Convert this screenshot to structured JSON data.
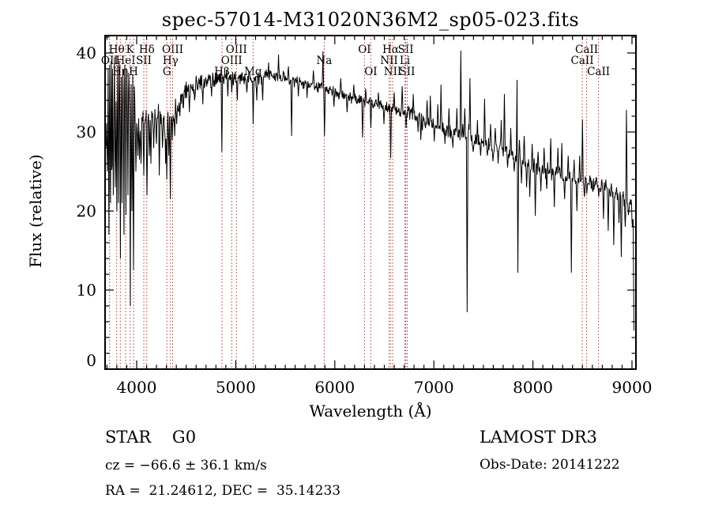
{
  "annotations": {
    "class_label": "STAR    G0",
    "survey": "LAMOST DR3",
    "cz": "cz = −66.6 ± 36.1 km/s",
    "obs_date": "Obs-Date: 20141222",
    "radec": "RA =  21.24612, DEC =  35.14233"
  },
  "colors": {
    "background": "#ffffff",
    "frame": "#000000",
    "spectrum": "#000000",
    "line_marker": "#aa3939",
    "text": "#000000"
  },
  "chart_data": {
    "type": "line",
    "title": "spec-57014-M31020N36M2_sp05-023.fits",
    "xlabel": "Wavelength (Å)",
    "ylabel": "Flux (relative)",
    "series_name": "spectrum",
    "xlim": [
      3681,
      9040
    ],
    "ylim": [
      0,
      42.2
    ],
    "x_ticks": [
      4000,
      5000,
      6000,
      7000,
      8000,
      9000
    ],
    "y_ticks": [
      0,
      10,
      20,
      30,
      40
    ],
    "x_minor_step": 100,
    "y_minor_step": 2,
    "grid": false,
    "sample_step_angstrom": 4,
    "spectral_line_markers": [
      {
        "label": "OII",
        "wavelength": 3727,
        "row": 2
      },
      {
        "label": "Hθ",
        "wavelength": 3798,
        "row": 1
      },
      {
        "label": "Hη",
        "wavelength": 3835,
        "row": 3
      },
      {
        "label": "HeI",
        "wavelength": 3889,
        "row": 2
      },
      {
        "label": "K",
        "wavelength": 3934,
        "row": 1
      },
      {
        "label": "H",
        "wavelength": 3968,
        "row": 3
      },
      {
        "label": "SII",
        "wavelength": 4072,
        "row": 2
      },
      {
        "label": "Hδ",
        "wavelength": 4102,
        "row": 1
      },
      {
        "label": "G",
        "wavelength": 4305,
        "row": 3
      },
      {
        "label": "Hγ",
        "wavelength": 4341,
        "row": 2
      },
      {
        "label": "OIII",
        "wavelength": 4363,
        "row": 1
      },
      {
        "label": "Hβ",
        "wavelength": 4861,
        "row": 3
      },
      {
        "label": "OIII",
        "wavelength": 4959,
        "row": 2
      },
      {
        "label": "OIII",
        "wavelength": 5007,
        "row": 1
      },
      {
        "label": "Mg",
        "wavelength": 5175,
        "row": 3
      },
      {
        "label": "Na",
        "wavelength": 5893,
        "row": 2
      },
      {
        "label": "OI",
        "wavelength": 6300,
        "row": 1
      },
      {
        "label": "OI",
        "wavelength": 6364,
        "row": 3
      },
      {
        "label": "NII",
        "wavelength": 6548,
        "row": 2
      },
      {
        "label": "Hα",
        "wavelength": 6563,
        "row": 1
      },
      {
        "label": "NII",
        "wavelength": 6584,
        "row": 3
      },
      {
        "label": "Li",
        "wavelength": 6708,
        "row": 2
      },
      {
        "label": "SII",
        "wavelength": 6716,
        "row": 1
      },
      {
        "label": "SII",
        "wavelength": 6731,
        "row": 3
      },
      {
        "label": "CaII",
        "wavelength": 8498,
        "row": 2
      },
      {
        "label": "CaII",
        "wavelength": 8542,
        "row": 1
      },
      {
        "label": "CaII",
        "wavelength": 8662,
        "row": 3
      }
    ],
    "envelope_points": [
      [
        3692,
        28
      ],
      [
        3700,
        30
      ],
      [
        3712,
        31
      ],
      [
        3725,
        30.5
      ],
      [
        3745,
        31.5
      ],
      [
        3765,
        32
      ],
      [
        3785,
        32.5
      ],
      [
        3805,
        32
      ],
      [
        3835,
        32.5
      ],
      [
        3865,
        33
      ],
      [
        3900,
        33.5
      ],
      [
        3940,
        34
      ],
      [
        3970,
        33
      ],
      [
        4000,
        31.5
      ],
      [
        4040,
        31.5
      ],
      [
        4080,
        31
      ],
      [
        4120,
        31.5
      ],
      [
        4160,
        32
      ],
      [
        4200,
        32.5
      ],
      [
        4245,
        32.5
      ],
      [
        4285,
        31.5
      ],
      [
        4325,
        31.8
      ],
      [
        4365,
        32.5
      ],
      [
        4405,
        33.5
      ],
      [
        4455,
        34.5
      ],
      [
        4505,
        35.3
      ],
      [
        4555,
        35.8
      ],
      [
        4605,
        36.2
      ],
      [
        4705,
        36.6
      ],
      [
        4805,
        36.8
      ],
      [
        4905,
        37
      ],
      [
        5005,
        36.8
      ],
      [
        5105,
        37
      ],
      [
        5205,
        36.6
      ],
      [
        5305,
        37
      ],
      [
        5405,
        37
      ],
      [
        5505,
        36.8
      ],
      [
        5605,
        36.4
      ],
      [
        5705,
        36.2
      ],
      [
        5805,
        35.8
      ],
      [
        5905,
        35.4
      ],
      [
        6005,
        35
      ],
      [
        6105,
        34.6
      ],
      [
        6205,
        34.2
      ],
      [
        6305,
        33.8
      ],
      [
        6405,
        33.5
      ],
      [
        6505,
        33.2
      ],
      [
        6605,
        32.8
      ],
      [
        6705,
        32.6
      ],
      [
        6805,
        32.2
      ],
      [
        6905,
        31.4
      ],
      [
        7005,
        30.8
      ],
      [
        7105,
        30.4
      ],
      [
        7205,
        29.8
      ],
      [
        7305,
        29.4
      ],
      [
        7405,
        29
      ],
      [
        7505,
        28.6
      ],
      [
        7605,
        28.2
      ],
      [
        7705,
        27.6
      ],
      [
        7805,
        27
      ],
      [
        7905,
        26.2
      ],
      [
        8005,
        25.6
      ],
      [
        8105,
        25.2
      ],
      [
        8205,
        24.8
      ],
      [
        8305,
        24.4
      ],
      [
        8405,
        24
      ],
      [
        8505,
        23.6
      ],
      [
        8605,
        23.3
      ],
      [
        8705,
        23
      ],
      [
        8805,
        22.2
      ],
      [
        8855,
        21.8
      ],
      [
        8905,
        21.4
      ],
      [
        8955,
        21
      ],
      [
        9000,
        20.3
      ],
      [
        9012,
        19
      ],
      [
        9018,
        8
      ],
      [
        9022,
        2.5
      ]
    ],
    "noise_amplitude_regions": [
      [
        3692,
        3995,
        4.8
      ],
      [
        3995,
        4350,
        2.1
      ],
      [
        4350,
        4800,
        1.5
      ],
      [
        4800,
        5500,
        1.1
      ],
      [
        5500,
        6500,
        0.8
      ],
      [
        6500,
        7600,
        1.0
      ],
      [
        7600,
        8300,
        1.3
      ],
      [
        8300,
        9005,
        1.1
      ],
      [
        9005,
        9022,
        0.6
      ]
    ],
    "narrow_features": [
      [
        3706,
        20
      ],
      [
        3712,
        38
      ],
      [
        3720,
        17
      ],
      [
        3728,
        38.5
      ],
      [
        3736,
        21
      ],
      [
        3745,
        39
      ],
      [
        3751,
        13.5
      ],
      [
        3757,
        38
      ],
      [
        3765,
        22
      ],
      [
        3775,
        39.5
      ],
      [
        3782,
        23
      ],
      [
        3798,
        20
      ],
      [
        3806,
        38.5
      ],
      [
        3815,
        21
      ],
      [
        3822,
        39
      ],
      [
        3835,
        14
      ],
      [
        3842,
        37
      ],
      [
        3850,
        21
      ],
      [
        3858,
        38
      ],
      [
        3872,
        17
      ],
      [
        3880,
        38.5
      ],
      [
        3890,
        19.5
      ],
      [
        3900,
        38
      ],
      [
        3912,
        22
      ],
      [
        3920,
        37.5
      ],
      [
        3934,
        8
      ],
      [
        3944,
        36
      ],
      [
        3952,
        20
      ],
      [
        3969,
        12.5
      ],
      [
        3980,
        34.5
      ],
      [
        3990,
        25
      ],
      [
        4010,
        27
      ],
      [
        4026,
        26.5
      ],
      [
        4045,
        26
      ],
      [
        4072,
        24.5
      ],
      [
        4102,
        22
      ],
      [
        4128,
        27
      ],
      [
        4144,
        26
      ],
      [
        4172,
        28
      ],
      [
        4200,
        28.5
      ],
      [
        4226,
        24.5
      ],
      [
        4260,
        28
      ],
      [
        4290,
        26
      ],
      [
        4305,
        24
      ],
      [
        4325,
        27
      ],
      [
        4341,
        21.5
      ],
      [
        4360,
        29
      ],
      [
        4383,
        29.5
      ],
      [
        4405,
        31
      ],
      [
        4435,
        32
      ],
      [
        4472,
        33
      ],
      [
        4531,
        32.5
      ],
      [
        4585,
        34
      ],
      [
        4668,
        33.5
      ],
      [
        4755,
        34.5
      ],
      [
        4861,
        27.5
      ],
      [
        4920,
        34.5
      ],
      [
        4958,
        35
      ],
      [
        5015,
        34
      ],
      [
        5110,
        35
      ],
      [
        5175,
        31
      ],
      [
        5210,
        34
      ],
      [
        5270,
        34
      ],
      [
        5330,
        38.8
      ],
      [
        5430,
        39.8
      ],
      [
        5530,
        38.3
      ],
      [
        5563,
        29.5
      ],
      [
        5630,
        34.5
      ],
      [
        5720,
        34.3
      ],
      [
        5782,
        37.8
      ],
      [
        5880,
        40.2
      ],
      [
        5896,
        29.5
      ],
      [
        5990,
        33.2
      ],
      [
        6060,
        36.8
      ],
      [
        6122,
        32.5
      ],
      [
        6190,
        36
      ],
      [
        6280,
        29.3
      ],
      [
        6310,
        35.5
      ],
      [
        6362,
        30.5
      ],
      [
        6440,
        35
      ],
      [
        6495,
        31
      ],
      [
        6563,
        26.7
      ],
      [
        6600,
        35
      ],
      [
        6680,
        35.8
      ],
      [
        6720,
        30.5
      ],
      [
        6790,
        34.8
      ],
      [
        6840,
        30
      ],
      [
        6869,
        29
      ],
      [
        6885,
        30.2
      ],
      [
        6930,
        34
      ],
      [
        6965,
        34.6
      ],
      [
        7005,
        28.8
      ],
      [
        7040,
        33.5
      ],
      [
        7070,
        36
      ],
      [
        7110,
        28.5
      ],
      [
        7150,
        33
      ],
      [
        7190,
        28
      ],
      [
        7230,
        33
      ],
      [
        7270,
        40.3
      ],
      [
        7290,
        31
      ],
      [
        7310,
        33
      ],
      [
        7334,
        7.2
      ],
      [
        7350,
        31
      ],
      [
        7365,
        36.8
      ],
      [
        7395,
        27.5
      ],
      [
        7440,
        31.5
      ],
      [
        7470,
        27
      ],
      [
        7510,
        34.2
      ],
      [
        7540,
        27
      ],
      [
        7570,
        31
      ],
      [
        7594,
        26.3
      ],
      [
        7620,
        30.5
      ],
      [
        7648,
        26
      ],
      [
        7678,
        31.5
      ],
      [
        7710,
        34.8
      ],
      [
        7745,
        25.5
      ],
      [
        7775,
        30.5
      ],
      [
        7810,
        25
      ],
      [
        7838,
        36.6
      ],
      [
        7846,
        12.2
      ],
      [
        7862,
        29
      ],
      [
        7885,
        23.5
      ],
      [
        7910,
        29.5
      ],
      [
        7935,
        23
      ],
      [
        7966,
        21.8
      ],
      [
        7990,
        28.5
      ],
      [
        8022,
        19.4
      ],
      [
        8050,
        27.5
      ],
      [
        8080,
        22.5
      ],
      [
        8110,
        28
      ],
      [
        8140,
        22.8
      ],
      [
        8180,
        29.2
      ],
      [
        8215,
        20.5
      ],
      [
        8250,
        28
      ],
      [
        8290,
        28.6
      ],
      [
        8320,
        21.5
      ],
      [
        8355,
        27
      ],
      [
        8386,
        12.2
      ],
      [
        8415,
        26.5
      ],
      [
        8445,
        20
      ],
      [
        8470,
        27
      ],
      [
        8498,
        31.6
      ],
      [
        8520,
        21.8
      ],
      [
        8542,
        22.2
      ],
      [
        8575,
        24.5
      ],
      [
        8605,
        22.5
      ],
      [
        8640,
        24.3
      ],
      [
        8662,
        21.8
      ],
      [
        8695,
        24
      ],
      [
        8710,
        19
      ],
      [
        8735,
        24
      ],
      [
        8760,
        17.5
      ],
      [
        8790,
        23.5
      ],
      [
        8817,
        15.7
      ],
      [
        8845,
        23
      ],
      [
        8868,
        18.5
      ],
      [
        8890,
        14.2
      ],
      [
        8912,
        22.5
      ],
      [
        8930,
        18
      ],
      [
        8945,
        32.8
      ],
      [
        8965,
        19.5
      ],
      [
        8985,
        21.5
      ],
      [
        9005,
        18
      ]
    ]
  }
}
